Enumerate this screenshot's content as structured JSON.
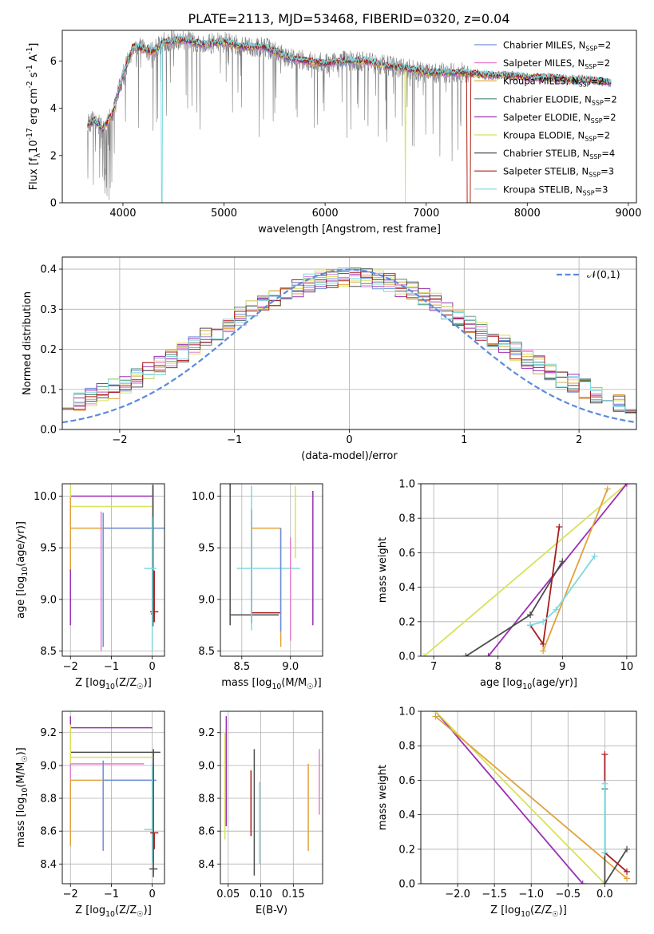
{
  "figure_title": "PLATE=2113, MJD=53468, FIBERID=0320, z=0.04",
  "model_colors": {
    "Chabrier MILES": "#6f8fd8",
    "Salpeter MILES": "#e57fce",
    "Kroupa MILES": "#e0a23a",
    "Chabrier ELODIE": "#4a8a72",
    "Salpeter ELODIE": "#9c2fb4",
    "Kroupa ELODIE": "#d8e25a",
    "Chabrier STELIB": "#4c4c4c",
    "Salpeter STELIB": "#a81c1c",
    "Kroupa STELIB": "#7ed8e0",
    "data": "#808080",
    "normal": "#5b8bd9"
  },
  "chart_data": [
    {
      "id": "spectrum",
      "type": "line",
      "xlabel": "wavelength [Angstrom, rest frame]",
      "ylabel": "Flux [f$_\\lambda$10$^{-17}$ erg cm$^{-2}$ s$^{-1}$ A$^{-1}$]",
      "ylabel_parts": [
        "Flux [f",
        "λ",
        "10",
        "−17",
        " erg cm",
        "−2",
        " s",
        "−1",
        " A",
        "−1",
        "]"
      ],
      "xlim": [
        3400,
        9080
      ],
      "ylim": [
        0,
        7.3
      ],
      "xticks": [
        4000,
        5000,
        6000,
        7000,
        8000,
        9000
      ],
      "yticks": [
        0,
        2,
        4,
        6
      ],
      "legend_position": "top-right",
      "legend": [
        {
          "model": "Chabrier MILES",
          "nssp": "2"
        },
        {
          "model": "Salpeter MILES",
          "nssp": "2"
        },
        {
          "model": "Kroupa MILES",
          "nssp": "2"
        },
        {
          "model": "Chabrier ELODIE",
          "nssp": "2"
        },
        {
          "model": "Salpeter ELODIE",
          "nssp": "2"
        },
        {
          "model": "Kroupa ELODIE",
          "nssp": "2"
        },
        {
          "model": "Chabrier STELIB",
          "nssp": "4"
        },
        {
          "model": "Salpeter STELIB",
          "nssp": "3"
        },
        {
          "model": "Kroupa STELIB",
          "nssp": "3"
        }
      ],
      "legend_nssp_prefix": "N",
      "legend_nssp_sub": "SSP",
      "continuum_knots": [
        [
          3650,
          3.3
        ],
        [
          3720,
          3.5
        ],
        [
          3800,
          3.1
        ],
        [
          3900,
          3.8
        ],
        [
          3950,
          4.6
        ],
        [
          4000,
          5.4
        ],
        [
          4100,
          6.6
        ],
        [
          4300,
          6.4
        ],
        [
          4400,
          6.8
        ],
        [
          4600,
          6.9
        ],
        [
          4800,
          6.7
        ],
        [
          5000,
          6.8
        ],
        [
          5200,
          6.6
        ],
        [
          5400,
          6.6
        ],
        [
          5600,
          6.2
        ],
        [
          5800,
          6.0
        ],
        [
          6000,
          5.9
        ],
        [
          6200,
          6.0
        ],
        [
          6400,
          6.0
        ],
        [
          6600,
          5.8
        ],
        [
          6800,
          5.7
        ],
        [
          7000,
          5.5
        ],
        [
          7200,
          5.5
        ],
        [
          7400,
          5.5
        ],
        [
          7600,
          5.4
        ],
        [
          7800,
          5.4
        ],
        [
          8000,
          5.3
        ],
        [
          8200,
          5.3
        ],
        [
          8400,
          5.2
        ],
        [
          8600,
          5.2
        ],
        [
          8800,
          5.1
        ]
      ],
      "data_range": [
        3650,
        7420
      ],
      "model_range": [
        3650,
        8830
      ]
    },
    {
      "id": "residuals",
      "type": "histogram",
      "xlabel": "(data-model)/error",
      "ylabel": "Normed distribution",
      "xlim": [
        -2.5,
        2.5
      ],
      "ylim": [
        0,
        0.43
      ],
      "xticks": [
        -2,
        -1,
        0,
        1,
        2
      ],
      "yticks": [
        0.0,
        0.1,
        0.2,
        0.3,
        0.4
      ],
      "bin_width": 0.1,
      "grid": true,
      "legend_position": "top-right",
      "normal_label": "𝒩(0,1)"
    },
    {
      "id": "age_vs_Z",
      "type": "errorbar",
      "xlabel": "Z [log$_{10}$(Z/Z$_\\odot$)]",
      "ylabel": "age  [log$_{10}$(age/yr)]",
      "xlim": [
        -2.2,
        0.3
      ],
      "ylim": [
        8.45,
        10.12
      ],
      "xticks": [
        -2,
        -1,
        0
      ],
      "yticks": [
        8.5,
        9.0,
        9.5,
        10.0
      ],
      "grid": true,
      "points": [
        {
          "model": "Salpeter ELODIE",
          "x": -2.0,
          "xerr": [
            0.0,
            2.0
          ],
          "y": 10.0,
          "yerr": [
            1.25,
            0.0
          ]
        },
        {
          "model": "Kroupa ELODIE",
          "x": -2.0,
          "xerr": [
            0.0,
            2.0
          ],
          "y": 9.9,
          "yerr": [
            0.5,
            0.2
          ]
        },
        {
          "model": "Kroupa MILES",
          "x": -2.0,
          "xerr": [
            0.0,
            2.0
          ],
          "y": 9.69,
          "yerr": [
            0.4,
            0.3
          ]
        },
        {
          "model": "Chabrier MILES",
          "x": -1.2,
          "xerr": [
            0.0,
            1.5
          ],
          "y": 9.69,
          "yerr": [
            1.15,
            0.15
          ]
        },
        {
          "model": "Chabrier STELIB",
          "x": 0.02,
          "xerr": [
            0.05,
            0.05
          ],
          "y": 8.86,
          "yerr": [
            0.12,
            1.25
          ]
        },
        {
          "model": "Salpeter STELIB",
          "x": 0.05,
          "xerr": [
            0.1,
            0.1
          ],
          "y": 8.88,
          "yerr": [
            0.1,
            0.4
          ]
        },
        {
          "model": "Kroupa STELIB",
          "x": 0.0,
          "xerr": [
            0.2,
            0.1
          ],
          "y": 9.3,
          "yerr": [
            0.8,
            0.5
          ]
        },
        {
          "model": "Salpeter MILES",
          "x": -1.25,
          "xerr": [
            0.0,
            0.0
          ],
          "y": 9.0,
          "yerr": [
            0.5,
            0.85
          ]
        }
      ]
    },
    {
      "id": "age_vs_mass",
      "type": "errorbar",
      "xlabel": "mass [log$_{10}$(M/M$_\\odot$)]",
      "ylabel": "",
      "xlim": [
        8.28,
        9.33
      ],
      "ylim": [
        8.45,
        10.12
      ],
      "xticks": [
        8.5,
        9.0
      ],
      "yticks": [
        8.5,
        9.0,
        9.5,
        10.0
      ],
      "grid": true,
      "points": [
        {
          "model": "Chabrier STELIB",
          "x": 8.38,
          "xerr": [
            0.0,
            0.5
          ],
          "y": 8.85,
          "yerr": [
            0.1,
            1.3
          ]
        },
        {
          "model": "Salpeter STELIB",
          "x": 8.6,
          "xerr": [
            0.0,
            0.3
          ],
          "y": 8.87,
          "yerr": [
            0.1,
            1.0
          ]
        },
        {
          "model": "Kroupa STELIB",
          "x": 8.6,
          "xerr": [
            0.15,
            0.5
          ],
          "y": 9.3,
          "yerr": [
            0.6,
            0.8
          ]
        },
        {
          "model": "Kroupa MILES",
          "x": 8.9,
          "xerr": [
            0.3,
            0.0
          ],
          "y": 9.69,
          "yerr": [
            1.15,
            0.0
          ]
        },
        {
          "model": "Chabrier MILES",
          "x": 8.9,
          "xerr": [
            0.0,
            0.0
          ],
          "y": 9.69,
          "yerr": [
            1.0,
            0.0
          ]
        },
        {
          "model": "Kroupa ELODIE",
          "x": 9.05,
          "xerr": [
            0.0,
            0.0
          ],
          "y": 9.9,
          "yerr": [
            0.5,
            0.2
          ]
        },
        {
          "model": "Salpeter ELODIE",
          "x": 9.23,
          "xerr": [
            0.0,
            0.0
          ],
          "y": 10.0,
          "yerr": [
            1.25,
            0.05
          ]
        },
        {
          "model": "Salpeter MILES",
          "x": 9.0,
          "xerr": [
            0.0,
            0.0
          ],
          "y": 9.0,
          "yerr": [
            0.4,
            0.6
          ]
        }
      ]
    },
    {
      "id": "massweight_vs_age",
      "type": "line",
      "xlabel": "age  [log$_{10}$(age/yr)]",
      "ylabel": "mass weight",
      "xlim": [
        6.8,
        10.15
      ],
      "ylim": [
        0.0,
        1.0
      ],
      "xticks": [
        7,
        8,
        9,
        10
      ],
      "yticks": [
        0.0,
        0.2,
        0.4,
        0.6,
        0.8,
        1.0
      ],
      "grid": true,
      "series": [
        {
          "model": "Kroupa ELODIE",
          "x": [
            6.85,
            10.0
          ],
          "y": [
            0.0,
            1.0
          ]
        },
        {
          "model": "Salpeter ELODIE",
          "x": [
            7.85,
            10.0
          ],
          "y": [
            0.0,
            1.0
          ]
        },
        {
          "model": "Chabrier STELIB",
          "x": [
            7.5,
            8.5,
            8.5,
            9.0
          ],
          "y": [
            0.0,
            0.24,
            0.24,
            0.55
          ]
        },
        {
          "model": "Salpeter STELIB",
          "x": [
            8.5,
            8.7,
            8.95
          ],
          "y": [
            0.18,
            0.07,
            0.75
          ]
        },
        {
          "model": "Kroupa MILES",
          "x": [
            8.7,
            9.7
          ],
          "y": [
            0.03,
            0.97
          ]
        },
        {
          "model": "Kroupa STELIB",
          "x": [
            8.5,
            8.7,
            8.9,
            9.5
          ],
          "y": [
            0.18,
            0.2,
            0.27,
            0.58
          ]
        }
      ]
    },
    {
      "id": "mass_vs_Z",
      "type": "errorbar",
      "xlabel": "Z [log$_{10}$(Z/Z$_\\odot$)]",
      "ylabel": "mass [log$_{10}$(M/M$_\\odot$)]",
      "xlim": [
        -2.2,
        0.3
      ],
      "ylim": [
        8.28,
        9.33
      ],
      "xticks": [
        -2,
        -1,
        0
      ],
      "yticks": [
        8.4,
        8.6,
        8.8,
        9.0,
        9.2
      ],
      "grid": true,
      "points": [
        {
          "model": "Salpeter ELODIE",
          "x": -2.0,
          "xerr": [
            0.0,
            2.0
          ],
          "y": 9.23,
          "yerr": [
            0.2,
            0.07
          ]
        },
        {
          "model": "Chabrier STELIB",
          "x": -2.0,
          "xerr": [
            0.0,
            2.2
          ],
          "y": 9.08,
          "yerr": [
            0.1,
            0.0
          ]
        },
        {
          "model": "Kroupa ELODIE",
          "x": -2.0,
          "xerr": [
            0.0,
            2.0
          ],
          "y": 9.05,
          "yerr": [
            0.5,
            0.2
          ]
        },
        {
          "model": "Salpeter MILES",
          "x": -2.0,
          "xerr": [
            0.0,
            1.8
          ],
          "y": 9.01,
          "yerr": [
            0.1,
            0.0
          ]
        },
        {
          "model": "Kroupa MILES",
          "x": -2.0,
          "xerr": [
            0.0,
            2.0
          ],
          "y": 8.91,
          "yerr": [
            0.4,
            0.0
          ]
        },
        {
          "model": "Chabrier MILES",
          "x": -1.2,
          "xerr": [
            0.0,
            1.3
          ],
          "y": 8.91,
          "yerr": [
            0.43,
            0.12
          ]
        },
        {
          "model": "Kroupa STELIB",
          "x": 0.0,
          "xerr": [
            0.2,
            0.0
          ],
          "y": 8.61,
          "yerr": [
            0.2,
            0.4
          ]
        },
        {
          "model": "Salpeter STELIB",
          "x": 0.05,
          "xerr": [
            0.1,
            0.1
          ],
          "y": 8.59,
          "yerr": [
            0.1,
            0.0
          ]
        },
        {
          "model": "Chabrier STELIB",
          "x": 0.03,
          "xerr": [
            0.1,
            0.1
          ],
          "y": 8.37,
          "yerr": [
            0.05,
            0.73
          ]
        }
      ]
    },
    {
      "id": "mass_vs_ebv",
      "type": "errorbar",
      "xlabel": "E(B-V)",
      "ylabel": "",
      "xlim": [
        0.038,
        0.195
      ],
      "ylim": [
        8.28,
        9.33
      ],
      "xticks": [
        0.05,
        0.1,
        0.15
      ],
      "yticks": [
        8.4,
        8.6,
        8.8,
        9.0,
        9.2
      ],
      "grid": true,
      "points": [
        {
          "model": "Kroupa ELODIE",
          "x": 0.045,
          "xerr": [
            0.0,
            0.0
          ],
          "y": 8.9,
          "yerr": [
            0.35,
            0.3
          ]
        },
        {
          "model": "Salpeter ELODIE",
          "x": 0.047,
          "xerr": [
            0.0,
            0.0
          ],
          "y": 8.95,
          "yerr": [
            0.32,
            0.35
          ]
        },
        {
          "model": "Salpeter STELIB",
          "x": 0.085,
          "xerr": [
            0.0,
            0.0
          ],
          "y": 8.77,
          "yerr": [
            0.2,
            0.2
          ]
        },
        {
          "model": "Chabrier STELIB",
          "x": 0.09,
          "xerr": [
            0.0,
            0.0
          ],
          "y": 8.7,
          "yerr": [
            0.37,
            0.4
          ]
        },
        {
          "model": "Kroupa STELIB",
          "x": 0.098,
          "xerr": [
            0.0,
            0.0
          ],
          "y": 8.7,
          "yerr": [
            0.3,
            0.2
          ]
        },
        {
          "model": "Kroupa MILES",
          "x": 0.173,
          "xerr": [
            0.0,
            0.0
          ],
          "y": 8.75,
          "yerr": [
            0.27,
            0.26
          ]
        },
        {
          "model": "Salpeter MILES",
          "x": 0.19,
          "xerr": [
            0.0,
            0.0
          ],
          "y": 8.9,
          "yerr": [
            0.2,
            0.2
          ]
        }
      ]
    },
    {
      "id": "massweight_vs_Z",
      "type": "line",
      "xlabel": "Z [log$_{10}$(Z/Z$_\\odot$)]",
      "ylabel": "mass weight",
      "xlim": [
        -2.5,
        0.43
      ],
      "ylim": [
        0.0,
        1.0
      ],
      "xticks": [
        -2.0,
        -1.5,
        -1.0,
        -0.5,
        0.0
      ],
      "yticks": [
        0.0,
        0.2,
        0.4,
        0.6,
        0.8,
        1.0
      ],
      "grid": true,
      "series": [
        {
          "model": "Salpeter ELODIE",
          "x": [
            -2.3,
            -0.3
          ],
          "y": [
            1.0,
            0.0
          ]
        },
        {
          "model": "Kroupa ELODIE",
          "x": [
            -2.3,
            0.0
          ],
          "y": [
            1.0,
            0.0
          ]
        },
        {
          "model": "Kroupa MILES",
          "x": [
            -2.3,
            0.3
          ],
          "y": [
            0.97,
            0.03
          ]
        },
        {
          "model": "Chabrier STELIB",
          "x": [
            0.0,
            0.0,
            0.3
          ],
          "y": [
            0.55,
            0.0,
            0.2
          ]
        },
        {
          "model": "Salpeter STELIB",
          "x": [
            0.0,
            0.0,
            0.3
          ],
          "y": [
            0.75,
            0.18,
            0.07
          ]
        },
        {
          "model": "Kroupa STELIB",
          "x": [
            0.0,
            0.0
          ],
          "y": [
            0.58,
            0.18
          ]
        }
      ]
    }
  ]
}
